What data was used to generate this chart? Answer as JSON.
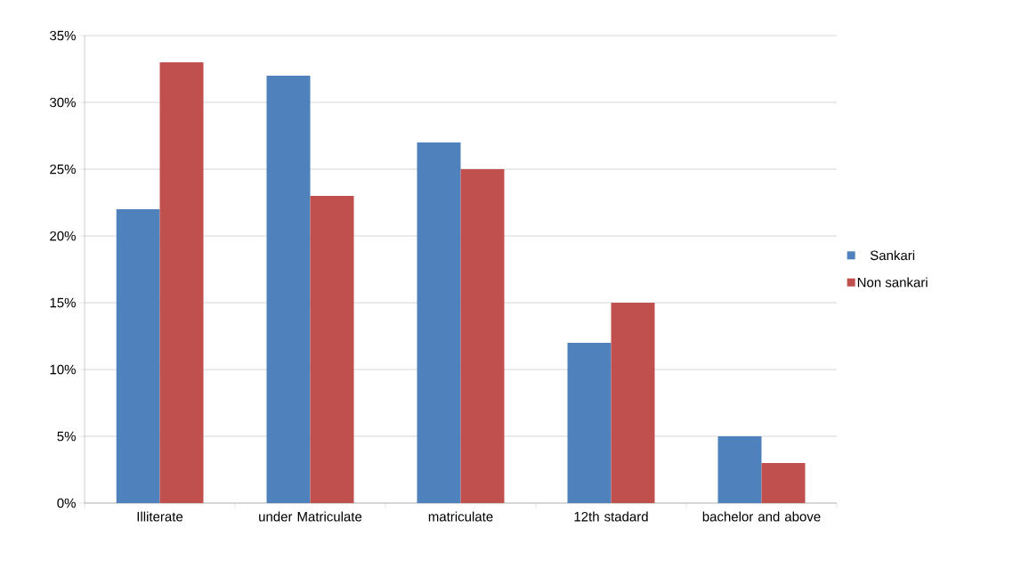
{
  "chart_data": {
    "type": "bar",
    "categories": [
      "Illiterate",
      "under Matriculate",
      "matriculate",
      "12th stadard",
      "bachelor and above"
    ],
    "series": [
      {
        "name": "Sankari",
        "color": "#4f81bd",
        "values": [
          22,
          32,
          27,
          12,
          5
        ]
      },
      {
        "name": "Non sankari",
        "color": "#c0504d",
        "values": [
          33,
          23,
          25,
          15,
          3
        ]
      }
    ],
    "ylim": [
      0,
      35
    ],
    "yticks": [
      {
        "value": 0,
        "label": "0%"
      },
      {
        "value": 5,
        "label": "5%"
      },
      {
        "value": 10,
        "label": "10%"
      },
      {
        "value": 15,
        "label": "15%"
      },
      {
        "value": 20,
        "label": "20%"
      },
      {
        "value": 25,
        "label": "25%"
      },
      {
        "value": 30,
        "label": "30%"
      },
      {
        "value": 35,
        "label": "35%"
      }
    ],
    "grid": "y",
    "legend": "right"
  }
}
